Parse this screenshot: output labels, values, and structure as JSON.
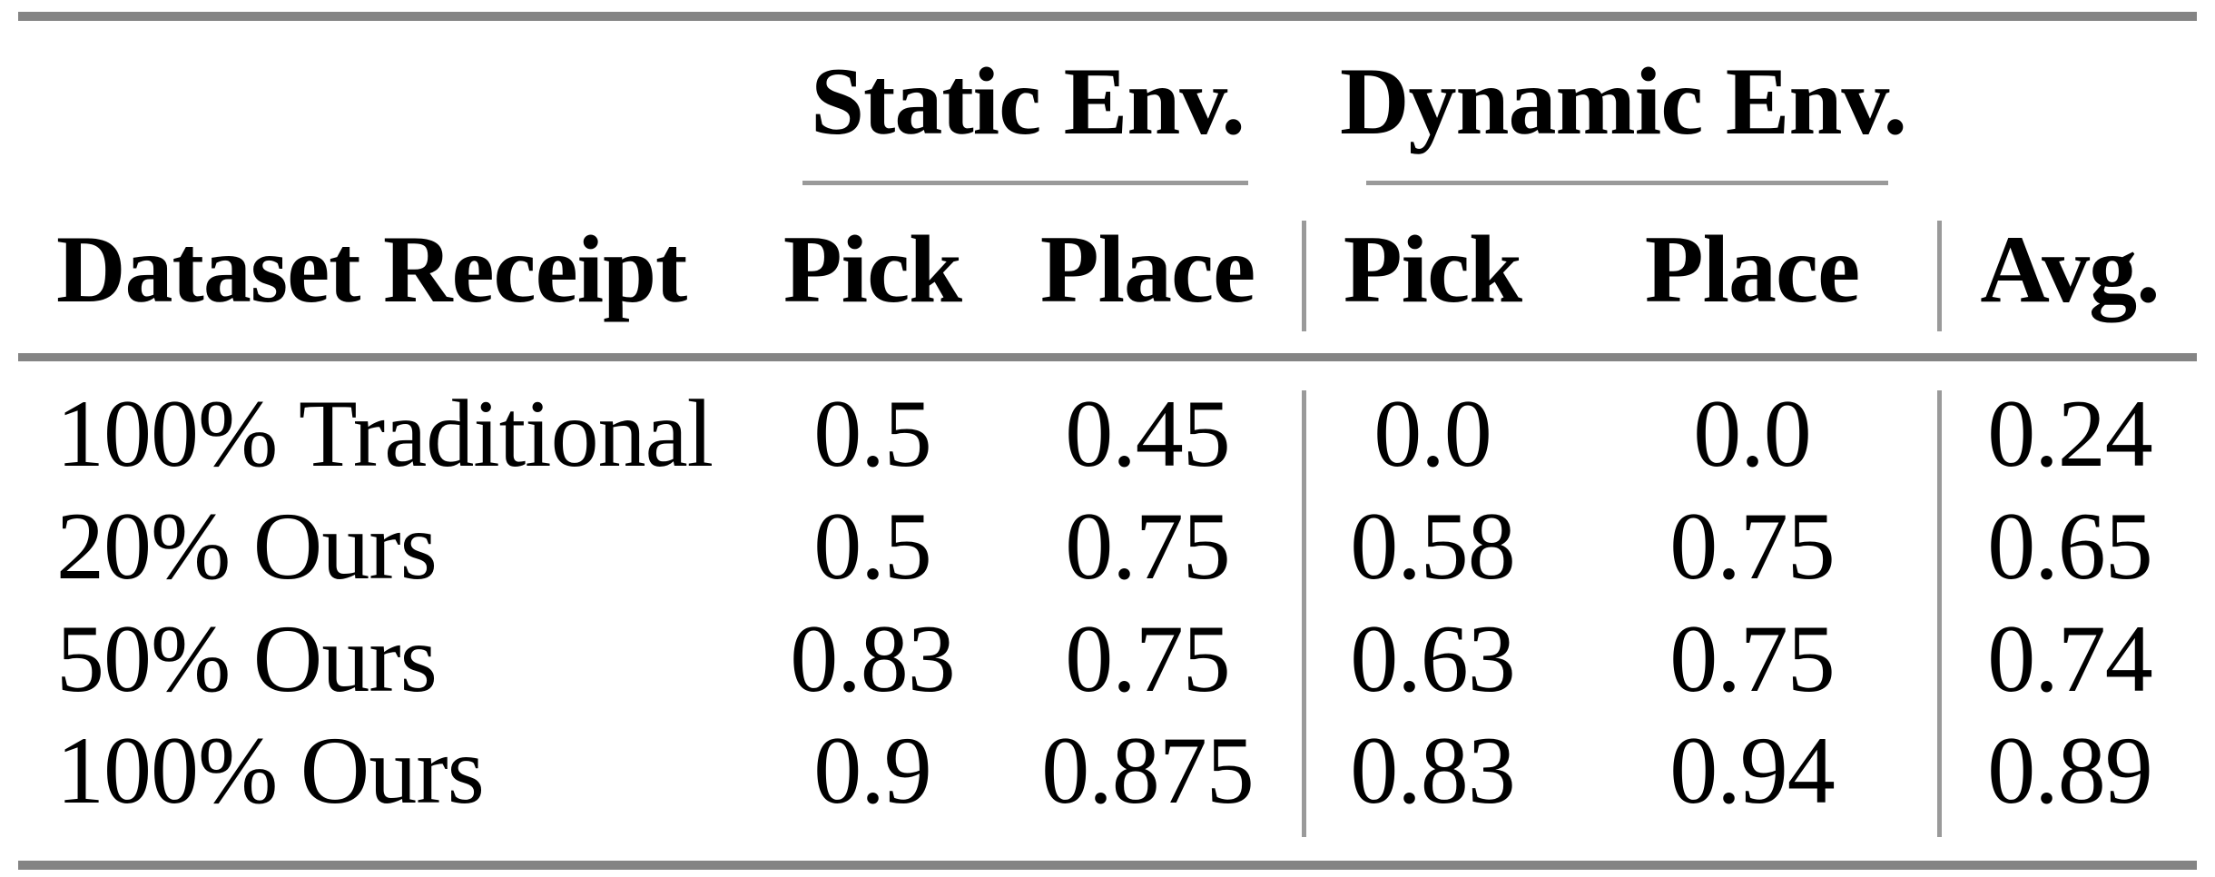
{
  "chart_data": {
    "type": "table",
    "column_groups": [
      "Static Env.",
      "Dynamic Env."
    ],
    "columns": [
      "Dataset Receipt",
      "Pick",
      "Place",
      "Pick",
      "Place",
      "Avg."
    ],
    "rows": [
      [
        "100% Traditional",
        "0.5",
        "0.45",
        "0.0",
        "0.0",
        "0.24"
      ],
      [
        "20% Ours",
        "0.5",
        "0.75",
        "0.58",
        "0.75",
        "0.65"
      ],
      [
        "50% Ours",
        "0.83",
        "0.75",
        "0.63",
        "0.75",
        "0.74"
      ],
      [
        "100% Ours",
        "0.9",
        "0.875",
        "0.83",
        "0.94",
        "0.89"
      ]
    ]
  },
  "colors": {
    "rule_heavy": "#848484",
    "rule_light": "#9a9a9a",
    "text": "#000000",
    "background": "#ffffff"
  }
}
